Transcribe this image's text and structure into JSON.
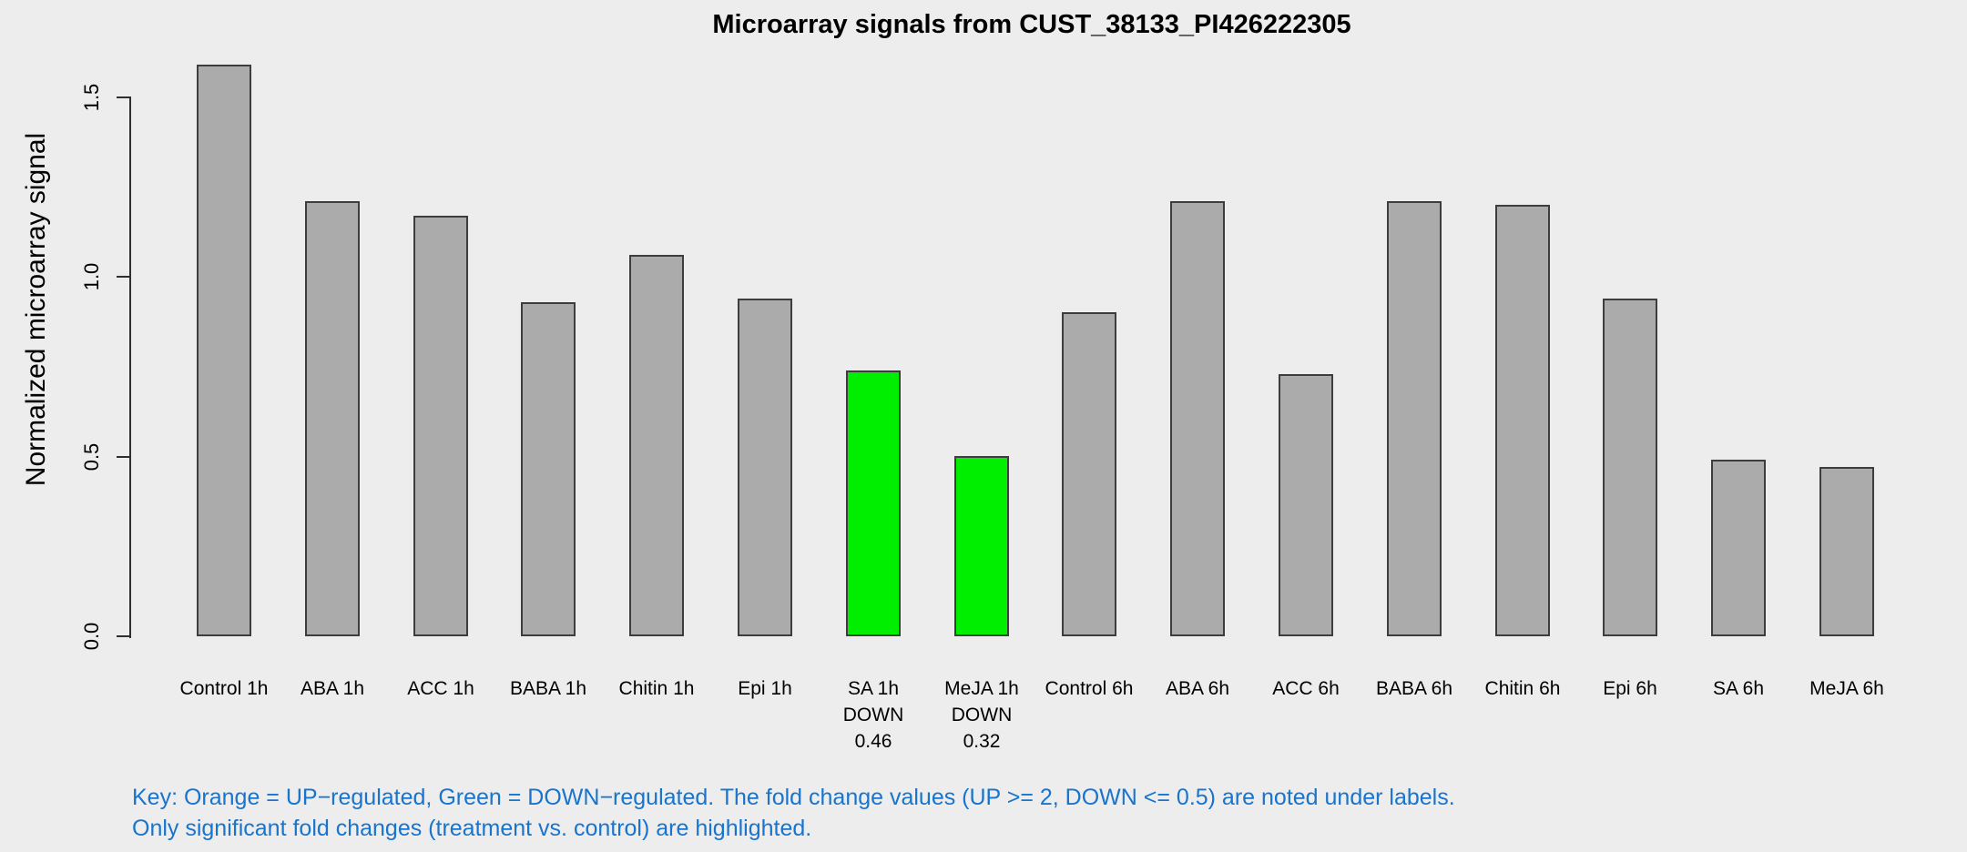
{
  "chart_data": {
    "type": "bar",
    "title": "Microarray signals from CUST_38133_PI426222305",
    "ylabel": "Normalized microarray signal",
    "ylim": [
      0,
      1.5
    ],
    "ytick_labels": [
      "0.0",
      "0.5",
      "1.0",
      "1.5"
    ],
    "grid": false,
    "legend": "none",
    "background_color": "#EDEDED",
    "bar_color_default": "#ABABAB",
    "bar_color_down_regulated": "#00EE00",
    "bar_border_color": "#3D3D3D",
    "bars": [
      {
        "label": "Control 1h",
        "value": 1.59
      },
      {
        "label": "ABA 1h",
        "value": 1.21
      },
      {
        "label": "ACC 1h",
        "value": 1.17
      },
      {
        "label": "BABA 1h",
        "value": 0.93
      },
      {
        "label": "Chitin 1h",
        "value": 1.06
      },
      {
        "label": "Epi 1h",
        "value": 0.94
      },
      {
        "label": "SA 1h",
        "value": 0.74,
        "regulation": "DOWN",
        "fold_change": "0.46"
      },
      {
        "label": "MeJA 1h",
        "value": 0.5,
        "regulation": "DOWN",
        "fold_change": "0.32"
      },
      {
        "label": "Control 6h",
        "value": 0.9
      },
      {
        "label": "ABA 6h",
        "value": 1.21
      },
      {
        "label": "ACC 6h",
        "value": 0.73
      },
      {
        "label": "BABA 6h",
        "value": 1.21
      },
      {
        "label": "Chitin 6h",
        "value": 1.2
      },
      {
        "label": "Epi 6h",
        "value": 0.94
      },
      {
        "label": "SA 6h",
        "value": 0.49
      },
      {
        "label": "MeJA 6h",
        "value": 0.47
      }
    ]
  },
  "key": {
    "line1": "Key: Orange = UP−regulated, Green = DOWN−regulated. The fold change values (UP >= 2, DOWN <= 0.5) are noted under labels.",
    "line2": "Only significant fold changes (treatment vs. control) are highlighted.",
    "text_color": "#1874CD"
  }
}
